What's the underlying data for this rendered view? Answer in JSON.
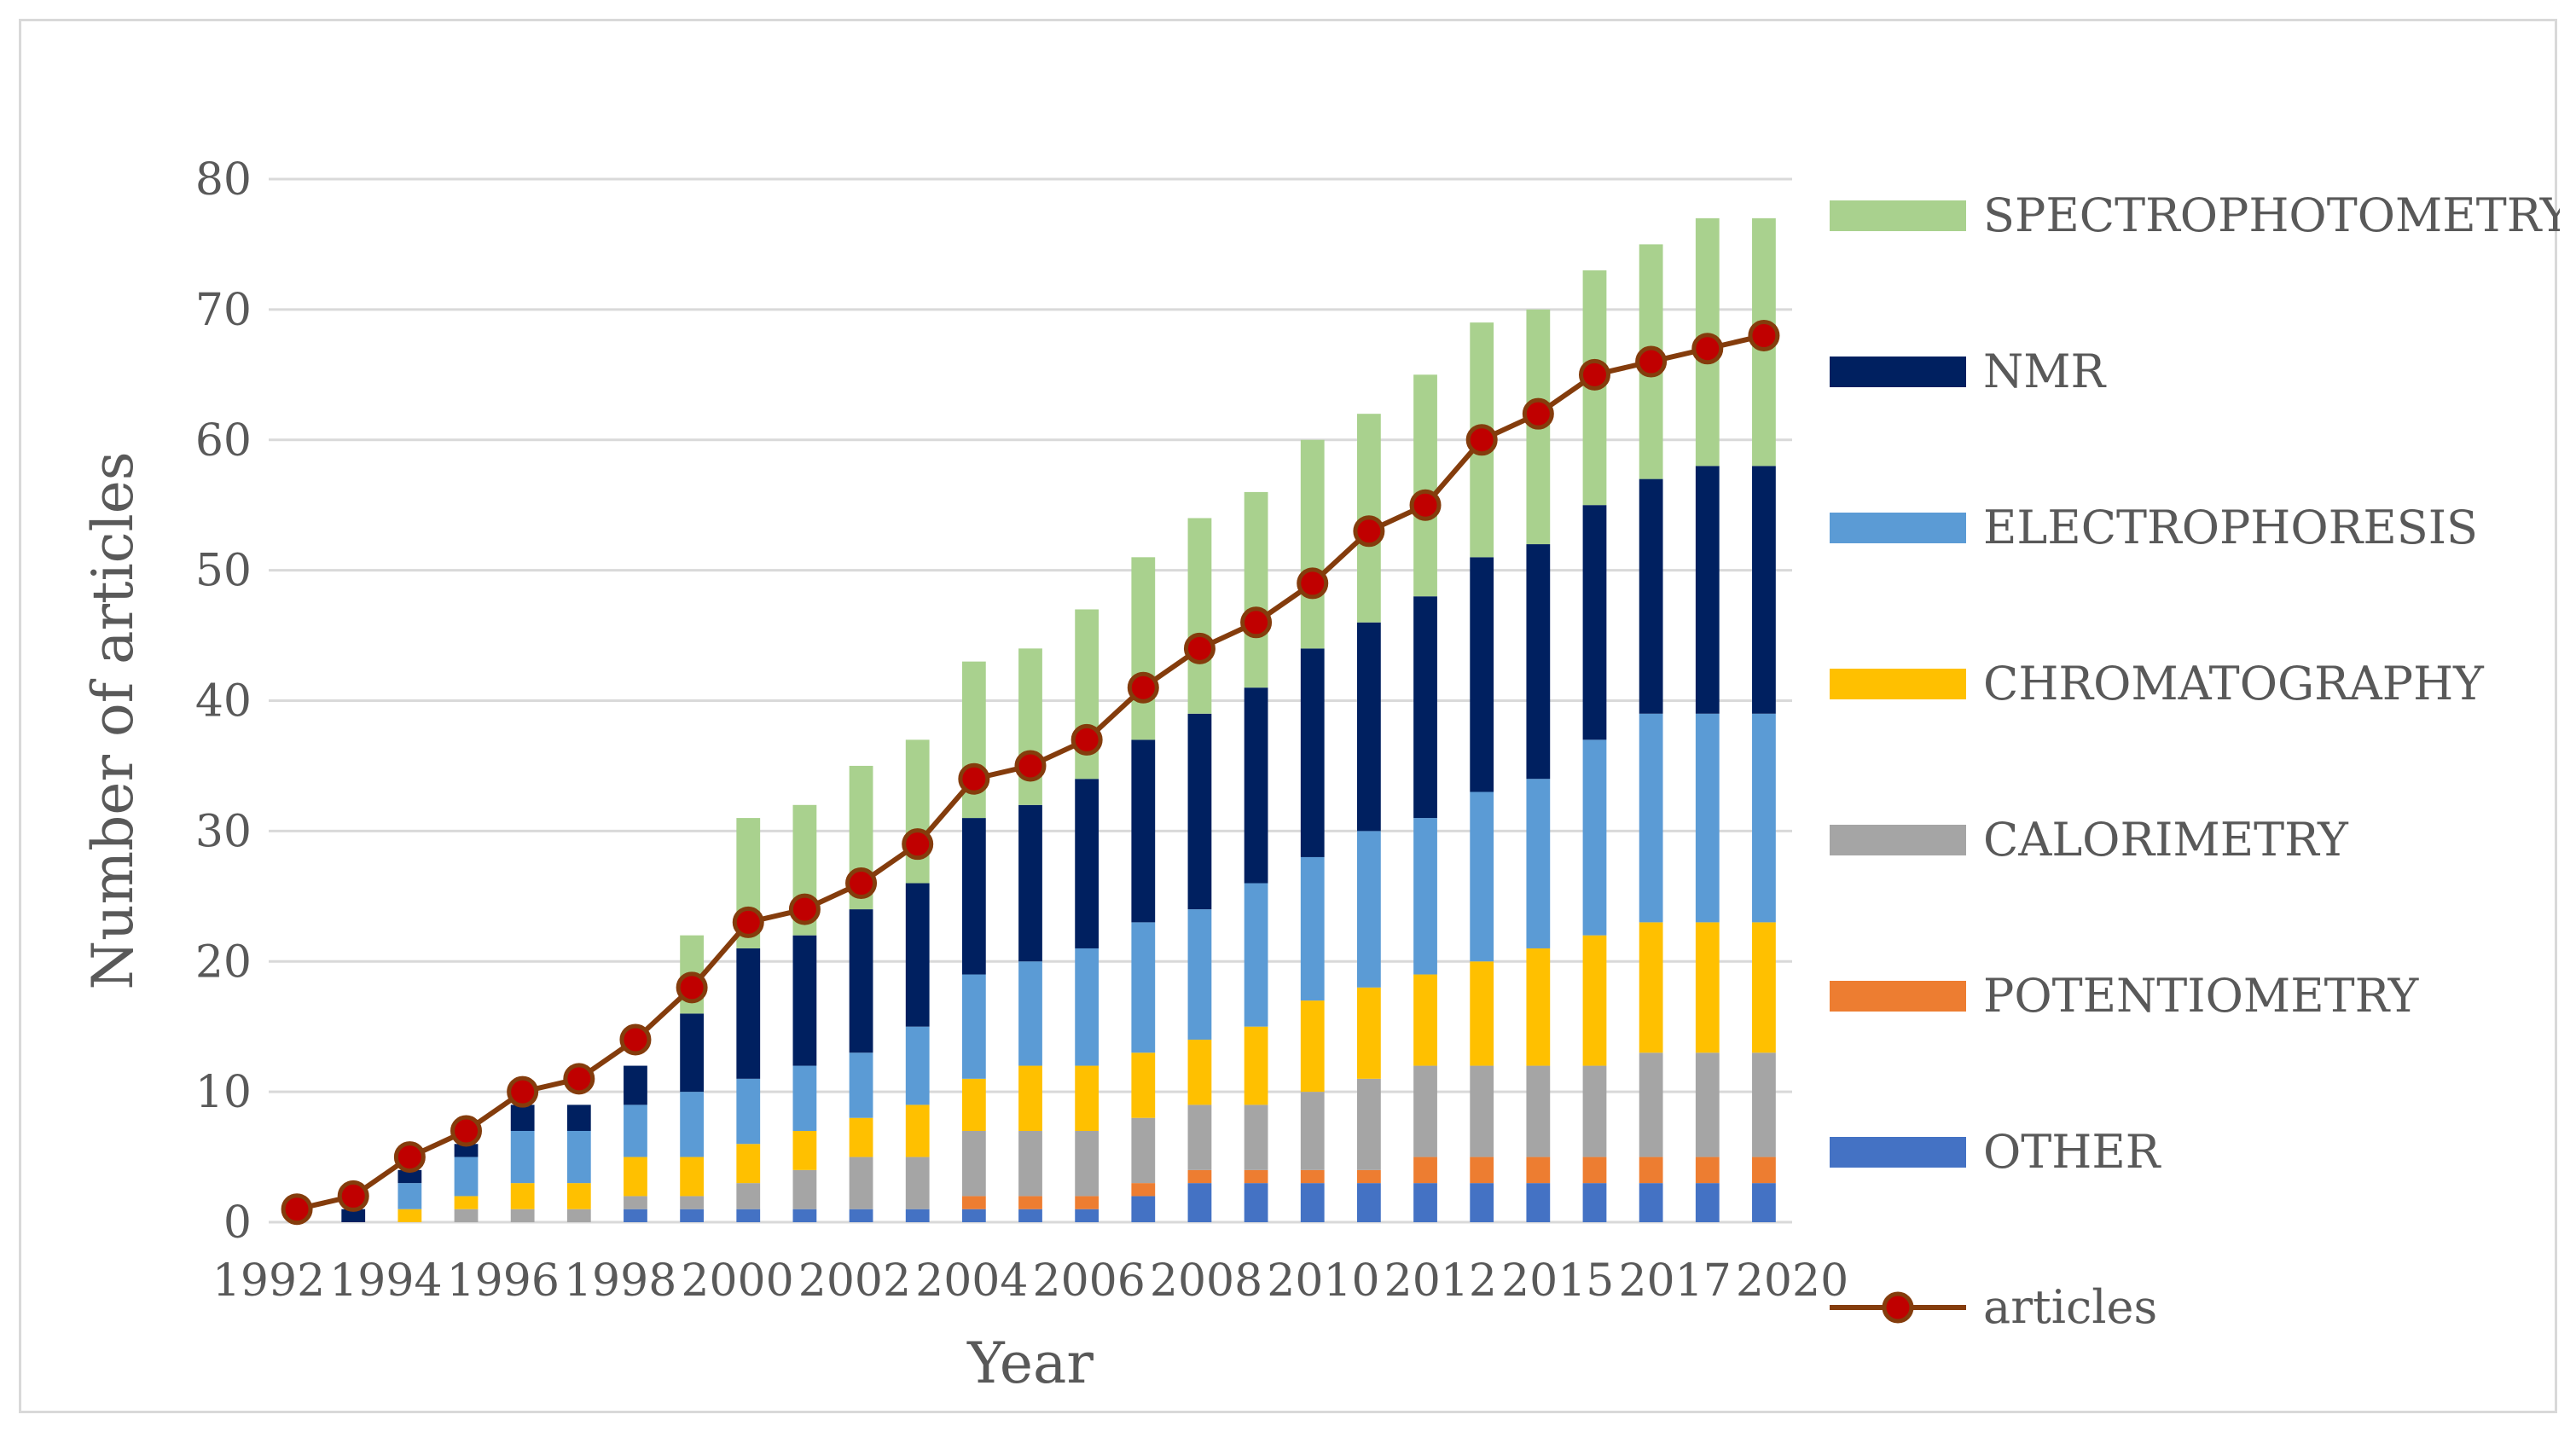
{
  "chart_data": {
    "type": "bar",
    "stacked": true,
    "title": "",
    "xlabel": "Year",
    "ylabel": "Number of articles",
    "ylim": [
      0,
      80
    ],
    "yticks": [
      0,
      10,
      20,
      30,
      40,
      50,
      60,
      70,
      80
    ],
    "grid": true,
    "legend_position": "right",
    "categories": [
      "1992",
      "1993",
      "1994",
      "1995",
      "1996",
      "1997",
      "1998",
      "1999",
      "2000",
      "2001",
      "2002",
      "2003",
      "2004",
      "2005",
      "2006",
      "2007",
      "2008",
      "2009",
      "2010",
      "2011",
      "2012",
      "2013",
      "2015",
      "2016",
      "2017",
      "2019",
      "2020"
    ],
    "tick_labels": [
      "1992",
      "1994",
      "1996",
      "1998",
      "2000",
      "2002",
      "2004",
      "2006",
      "2008",
      "2010",
      "2012",
      "2015",
      "2017",
      "2020"
    ],
    "series": [
      {
        "name": "OTHER",
        "color": "#4472c4",
        "values": [
          0,
          0,
          0,
          0,
          0,
          0,
          1,
          1,
          1,
          1,
          1,
          1,
          1,
          1,
          1,
          2,
          3,
          3,
          3,
          3,
          3,
          3,
          3,
          3,
          3,
          3,
          3
        ]
      },
      {
        "name": "POTENTIOMETRY",
        "color": "#ed7d31",
        "values": [
          0,
          0,
          0,
          0,
          0,
          0,
          0,
          0,
          0,
          0,
          0,
          0,
          1,
          1,
          1,
          1,
          1,
          1,
          1,
          1,
          2,
          2,
          2,
          2,
          2,
          2,
          2
        ]
      },
      {
        "name": "CALORIMETRY",
        "color": "#a5a5a5",
        "values": [
          0,
          0,
          0,
          1,
          1,
          1,
          1,
          1,
          2,
          3,
          4,
          4,
          5,
          5,
          5,
          5,
          5,
          5,
          6,
          7,
          7,
          7,
          7,
          7,
          8,
          8,
          8
        ]
      },
      {
        "name": "CHROMATOGRAPHY",
        "color": "#ffc000",
        "values": [
          0,
          0,
          1,
          1,
          2,
          2,
          3,
          3,
          3,
          3,
          3,
          4,
          4,
          5,
          5,
          5,
          5,
          6,
          7,
          7,
          7,
          8,
          9,
          10,
          10,
          10,
          10
        ]
      },
      {
        "name": "ELECTROPHORESIS",
        "color": "#5b9bd5",
        "values": [
          0,
          0,
          2,
          3,
          4,
          4,
          4,
          5,
          5,
          5,
          5,
          6,
          8,
          8,
          9,
          10,
          10,
          11,
          11,
          12,
          12,
          13,
          13,
          15,
          16,
          16,
          16
        ]
      },
      {
        "name": "NMR",
        "color": "#002060",
        "values": [
          0,
          1,
          1,
          1,
          2,
          2,
          3,
          6,
          10,
          10,
          11,
          11,
          12,
          12,
          13,
          14,
          15,
          15,
          16,
          16,
          17,
          18,
          18,
          18,
          18,
          19,
          19
        ]
      },
      {
        "name": "SPECTROPHOTOMETRY",
        "color": "#a9d18e",
        "values": [
          0,
          0,
          0,
          0,
          0,
          0,
          0,
          6,
          10,
          10,
          11,
          11,
          12,
          12,
          13,
          14,
          15,
          15,
          16,
          16,
          17,
          18,
          18,
          18,
          18,
          19,
          19
        ]
      }
    ],
    "line_series": {
      "name": "articles",
      "color": "#843c0c",
      "marker_color": "#c00000",
      "values": [
        1,
        2,
        5,
        7,
        10,
        11,
        14,
        18,
        23,
        24,
        26,
        29,
        34,
        35,
        37,
        41,
        44,
        46,
        49,
        53,
        55,
        60,
        62,
        65,
        66,
        67,
        68
      ]
    }
  }
}
